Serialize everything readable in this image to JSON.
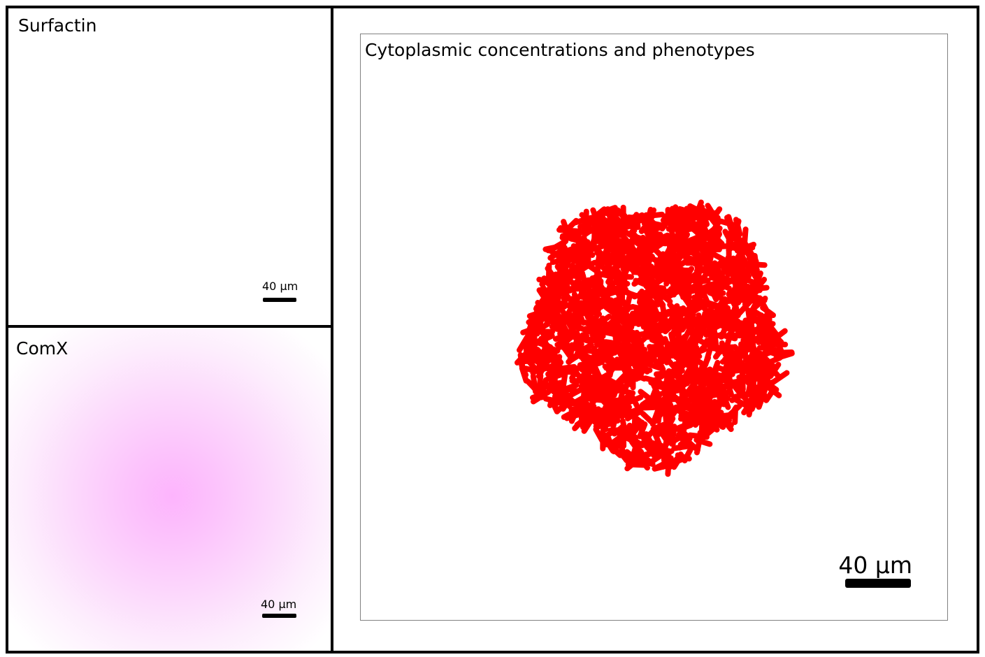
{
  "panels": {
    "surfactin": {
      "title": "Surfactin",
      "scale_label": "40 μm"
    },
    "comx": {
      "title": "ComX",
      "scale_label": "40 μm"
    },
    "main": {
      "title": "Cytoplasmic concentrations and phenotypes",
      "scale_label": "40 μm"
    }
  },
  "colors": {
    "cell": "#ff0000",
    "comx_peak": "#fdb4fd",
    "frame": "#000000",
    "main_border": "#808080"
  }
}
